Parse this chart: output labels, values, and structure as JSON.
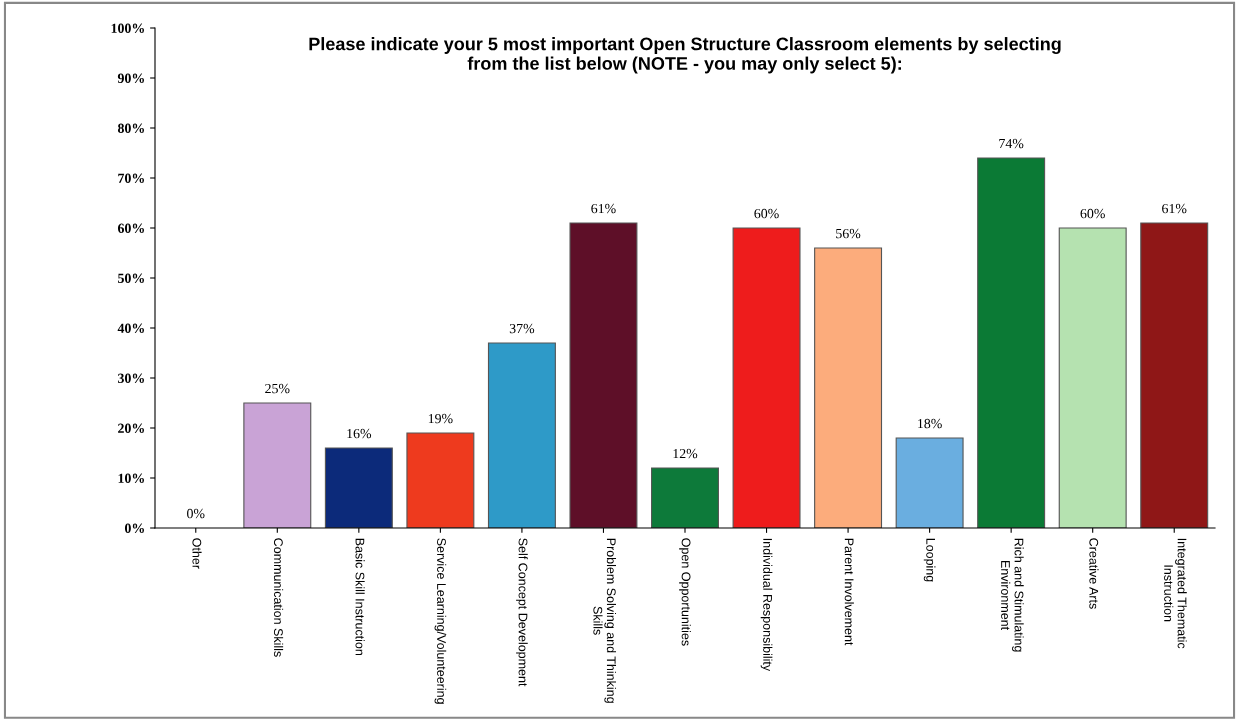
{
  "chart_data": {
    "type": "bar",
    "title": "Please indicate your 5 most important Open Structure Classroom elements by selecting\nfrom the list below (NOTE - you may only select 5):",
    "categories": [
      "Other",
      "Communication Skills",
      "Basic Skill Instruction",
      "Service Learning/Volunteering",
      "Self Concept Development",
      "Problem Solving and Thinking\nSkills",
      "Open Opportunities",
      "Individual Responsibility",
      "Parent Involvement",
      "Looping",
      "Rich and Stimulating\nEnvironment",
      "Creative Arts",
      "Integrated Thematic\nInstruction"
    ],
    "values": [
      0,
      25,
      16,
      19,
      37,
      61,
      12,
      60,
      56,
      18,
      74,
      60,
      61
    ],
    "value_labels": [
      "0%",
      "25%",
      "16%",
      "19%",
      "37%",
      "61%",
      "12%",
      "60%",
      "56%",
      "18%",
      "74%",
      "60%",
      "61%"
    ],
    "colors": [
      "#ffffff",
      "#c9a3d6",
      "#0c2a7a",
      "#ee3a1e",
      "#2e9ac8",
      "#5e0f28",
      "#0d7a3a",
      "#ee1c1c",
      "#fcac7c",
      "#6aaee0",
      "#0b7a35",
      "#b5e2b0",
      "#8f1717"
    ],
    "ylim": [
      0,
      100
    ],
    "yticks": [
      {
        "value": 0,
        "label": "0%"
      },
      {
        "value": 10,
        "label": "10%"
      },
      {
        "value": 20,
        "label": "20%"
      },
      {
        "value": 30,
        "label": "30%"
      },
      {
        "value": 40,
        "label": "40%"
      },
      {
        "value": 50,
        "label": "50%"
      },
      {
        "value": 60,
        "label": "60%"
      },
      {
        "value": 70,
        "label": "70%"
      },
      {
        "value": 80,
        "label": "80%"
      },
      {
        "value": 90,
        "label": "90%"
      },
      {
        "value": 100,
        "label": "100%"
      }
    ],
    "grid": false,
    "legend": false
  }
}
